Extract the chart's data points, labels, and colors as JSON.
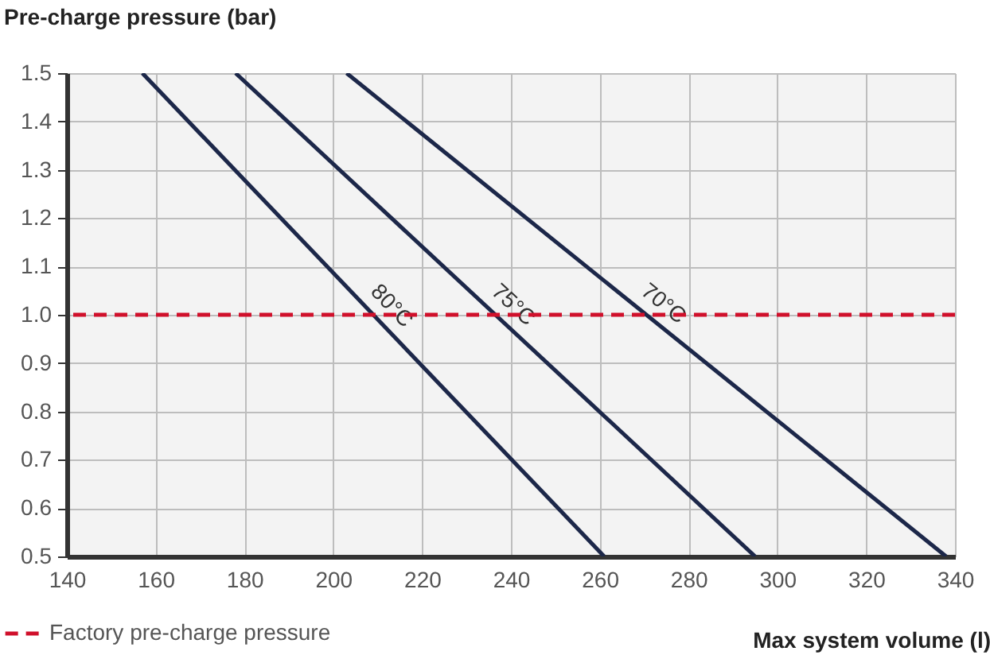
{
  "chart_data": {
    "type": "line",
    "xlabel": "Max system volume (l)",
    "ylabel": "Pre-charge pressure (bar)",
    "series": [
      {
        "name": "80°C",
        "color": "#1c2749",
        "x": [
          157,
          261
        ],
        "values": [
          1.5,
          0.5
        ]
      },
      {
        "name": "75°C",
        "color": "#1c2749",
        "x": [
          178,
          295
        ],
        "values": [
          1.5,
          0.5
        ]
      },
      {
        "name": "70°C",
        "color": "#1c2749",
        "x": [
          203,
          338
        ],
        "values": [
          1.5,
          0.5
        ]
      }
    ],
    "xlim": [
      140,
      340
    ],
    "xticks": [
      140,
      160,
      180,
      200,
      220,
      240,
      260,
      280,
      300,
      320,
      340
    ],
    "ylim": [
      0.5,
      1.5
    ],
    "yticks": [
      {
        "value": 0.5,
        "label": "0.5"
      },
      {
        "value": 0.6,
        "label": "0.6"
      },
      {
        "value": 0.7,
        "label": "0.7"
      },
      {
        "value": 0.8,
        "label": "0.8"
      },
      {
        "value": 0.9,
        "label": "0.9"
      },
      {
        "value": 1.0,
        "label": "1.0"
      },
      {
        "value": 1.1,
        "label": "1.1"
      },
      {
        "value": 1.2,
        "label": "1.2"
      },
      {
        "value": 1.3,
        "label": "1.3"
      },
      {
        "value": 1.4,
        "label": "1.4"
      },
      {
        "value": 1.5,
        "label": "1.5"
      }
    ],
    "ref_lines": [
      {
        "axis": "y",
        "value": 1.0,
        "label": "Factory pre-charge pressure",
        "color": "#d0102b",
        "line_style": "dashed"
      }
    ],
    "grid": true,
    "legend": "bottom left",
    "marker": "none",
    "line_style": "solid"
  }
}
